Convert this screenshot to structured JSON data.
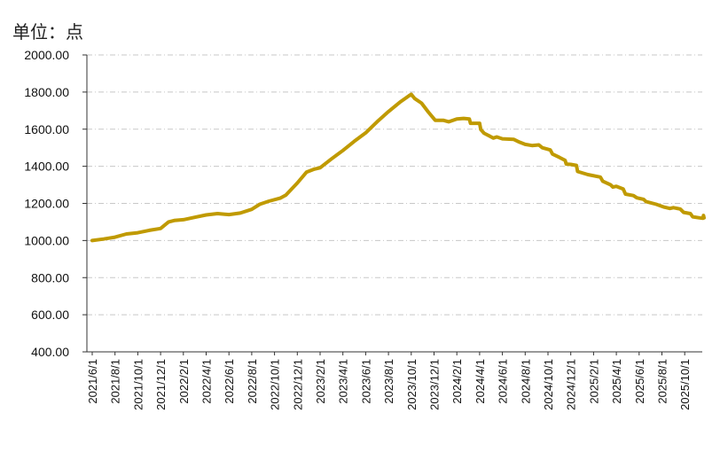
{
  "chart_data": {
    "type": "line",
    "unit_label": "单位：点",
    "ylim": [
      400,
      2000
    ],
    "y_ticks": [
      400,
      600,
      800,
      1000,
      1200,
      1400,
      1600,
      1800,
      2000
    ],
    "y_tick_labels": [
      "400.00",
      "600.00",
      "800.00",
      "1000.00",
      "1200.00",
      "1400.00",
      "1600.00",
      "1800.00",
      "2000.00"
    ],
    "x_tick_labels": [
      "2021/6/1",
      "2021/8/1",
      "2021/10/1",
      "2021/12/1",
      "2022/2/1",
      "2022/4/1",
      "2022/6/1",
      "2022/8/1",
      "2022/10/1",
      "2022/12/1",
      "2023/2/1",
      "2023/4/1",
      "2023/6/1",
      "2023/8/1",
      "2023/10/1",
      "2023/12/1",
      "2024/2/1",
      "2024/4/1",
      "2024/6/1",
      "2024/8/1",
      "2024/10/1",
      "2024/12/1",
      "2025/2/1",
      "2025/4/1",
      "2025/6/1",
      "2025/8/1",
      "2025/10/1"
    ],
    "grid": "horizontal dashed",
    "line_color": "#C09A00",
    "series": [
      {
        "values": [
          [
            0,
            1000
          ],
          [
            1,
            1008
          ],
          [
            2,
            1018
          ],
          [
            3,
            1035
          ],
          [
            4,
            1042
          ],
          [
            5,
            1055
          ],
          [
            6,
            1065
          ],
          [
            6.7,
            1100
          ],
          [
            7.2,
            1108
          ],
          [
            8,
            1112
          ],
          [
            9,
            1125
          ],
          [
            10,
            1138
          ],
          [
            11,
            1145
          ],
          [
            12,
            1140
          ],
          [
            13,
            1148
          ],
          [
            14,
            1168
          ],
          [
            14.7,
            1195
          ],
          [
            15.5,
            1212
          ],
          [
            16.5,
            1228
          ],
          [
            17,
            1245
          ],
          [
            18,
            1310
          ],
          [
            18.8,
            1368
          ],
          [
            19.5,
            1385
          ],
          [
            20,
            1392
          ],
          [
            21,
            1440
          ],
          [
            22,
            1485
          ],
          [
            23,
            1535
          ],
          [
            24,
            1580
          ],
          [
            25,
            1640
          ],
          [
            26,
            1695
          ],
          [
            27,
            1745
          ],
          [
            27.8,
            1780
          ],
          [
            28,
            1788
          ],
          [
            28.3,
            1765
          ],
          [
            28.9,
            1740
          ],
          [
            29.5,
            1692
          ],
          [
            30.1,
            1648
          ],
          [
            30.8,
            1648
          ],
          [
            31.3,
            1640
          ],
          [
            32,
            1655
          ],
          [
            32.6,
            1658
          ],
          [
            33.1,
            1655
          ],
          [
            33.2,
            1632
          ],
          [
            34,
            1632
          ],
          [
            34.1,
            1598
          ],
          [
            34.4,
            1578
          ],
          [
            34.9,
            1562
          ],
          [
            35.2,
            1552
          ],
          [
            35.5,
            1558
          ],
          [
            36,
            1548
          ],
          [
            37,
            1545
          ],
          [
            37.5,
            1530
          ],
          [
            38,
            1518
          ],
          [
            38.6,
            1512
          ],
          [
            39.2,
            1515
          ],
          [
            39.5,
            1500
          ],
          [
            40.2,
            1488
          ],
          [
            40.4,
            1466
          ],
          [
            41,
            1448
          ],
          [
            41.5,
            1432
          ],
          [
            41.6,
            1412
          ],
          [
            42,
            1410
          ],
          [
            42.5,
            1405
          ],
          [
            42.6,
            1372
          ],
          [
            43.5,
            1355
          ],
          [
            44.3,
            1345
          ],
          [
            44.6,
            1342
          ],
          [
            44.8,
            1320
          ],
          [
            45.5,
            1300
          ],
          [
            45.7,
            1288
          ],
          [
            46,
            1292
          ],
          [
            46.6,
            1278
          ],
          [
            46.8,
            1250
          ],
          [
            47.5,
            1242
          ],
          [
            47.8,
            1230
          ],
          [
            48.4,
            1222
          ],
          [
            48.6,
            1210
          ],
          [
            49.5,
            1195
          ],
          [
            50.2,
            1180
          ],
          [
            50.7,
            1173
          ],
          [
            51,
            1177
          ],
          [
            51.6,
            1170
          ],
          [
            51.9,
            1152
          ],
          [
            52.5,
            1145
          ],
          [
            52.7,
            1128
          ],
          [
            53.3,
            1122
          ],
          [
            53.6,
            1120
          ],
          [
            53.65,
            1135
          ],
          [
            53.7,
            1122
          ]
        ]
      }
    ]
  }
}
